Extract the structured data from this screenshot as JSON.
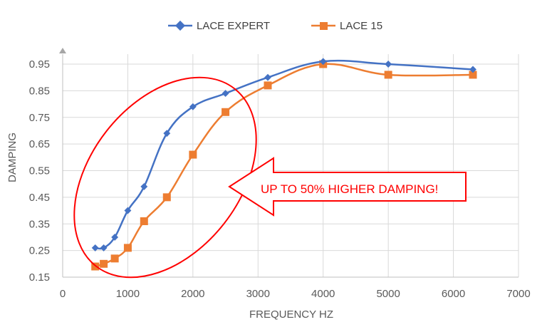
{
  "chart_data": {
    "type": "line",
    "title": "",
    "xlabel": "FREQUENCY HZ",
    "ylabel": "DAMPING",
    "xlim": [
      0,
      7000
    ],
    "ylim": [
      0.15,
      0.95
    ],
    "xticks": [
      0,
      1000,
      2000,
      3000,
      4000,
      5000,
      6000,
      7000
    ],
    "yticks": [
      0.15,
      0.25,
      0.35,
      0.45,
      0.55,
      0.65,
      0.75,
      0.85,
      0.95
    ],
    "grid": true,
    "legend_position": "top",
    "series": [
      {
        "name": "LACE EXPERT",
        "color": "#4472c4",
        "marker": "diamond",
        "x": [
          500,
          630,
          800,
          1000,
          1250,
          1600,
          2000,
          2500,
          3150,
          4000,
          5000,
          6300
        ],
        "values": [
          0.26,
          0.26,
          0.3,
          0.4,
          0.49,
          0.69,
          0.79,
          0.84,
          0.9,
          0.96,
          0.95,
          0.93
        ]
      },
      {
        "name": "LACE 15",
        "color": "#ed7d31",
        "marker": "square",
        "x": [
          500,
          630,
          800,
          1000,
          1250,
          1600,
          2000,
          2500,
          3150,
          4000,
          5000,
          6300
        ],
        "values": [
          0.19,
          0.2,
          0.22,
          0.26,
          0.36,
          0.45,
          0.61,
          0.77,
          0.87,
          0.95,
          0.91,
          0.91
        ]
      }
    ],
    "annotation": {
      "text": "UP TO 50% HIGHER DAMPING!",
      "color": "#ff0000"
    }
  }
}
